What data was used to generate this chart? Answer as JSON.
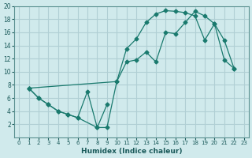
{
  "xlabel": "Humidex (Indice chaleur)",
  "bg_color": "#d0eaec",
  "grid_color": "#b0cfd4",
  "line_color": "#1a7a6e",
  "xlim": [
    -0.5,
    23.5
  ],
  "ylim": [
    0,
    20
  ],
  "xticks": [
    0,
    1,
    2,
    3,
    4,
    5,
    6,
    7,
    8,
    9,
    10,
    11,
    12,
    13,
    14,
    15,
    16,
    17,
    18,
    19,
    20,
    21,
    22,
    23
  ],
  "yticks": [
    2,
    4,
    6,
    8,
    10,
    12,
    14,
    16,
    18,
    20
  ],
  "curve1_x": [
    1,
    2,
    3,
    4,
    5,
    6,
    7,
    8,
    9
  ],
  "curve1_y": [
    7.5,
    6.0,
    5.0,
    4.0,
    3.5,
    3.0,
    7.0,
    1.5,
    5.0
  ],
  "curve2_x": [
    1,
    2,
    3,
    4,
    5,
    6,
    8,
    9,
    10,
    11,
    12,
    13,
    14,
    15,
    16,
    17,
    18,
    19,
    20,
    21,
    22
  ],
  "curve2_y": [
    7.5,
    6.0,
    5.0,
    4.0,
    3.5,
    3.0,
    1.5,
    1.5,
    8.5,
    11.5,
    11.8,
    13.0,
    11.5,
    16.0,
    15.8,
    17.5,
    19.2,
    18.5,
    17.3,
    11.8,
    10.5
  ],
  "curve3_x": [
    1,
    10,
    11,
    12,
    13,
    14,
    15,
    16,
    17,
    18,
    19,
    20,
    21,
    22
  ],
  "curve3_y": [
    7.5,
    8.5,
    13.5,
    15.0,
    17.5,
    18.8,
    19.3,
    19.2,
    19.0,
    18.5,
    14.8,
    17.3,
    14.8,
    10.5
  ]
}
